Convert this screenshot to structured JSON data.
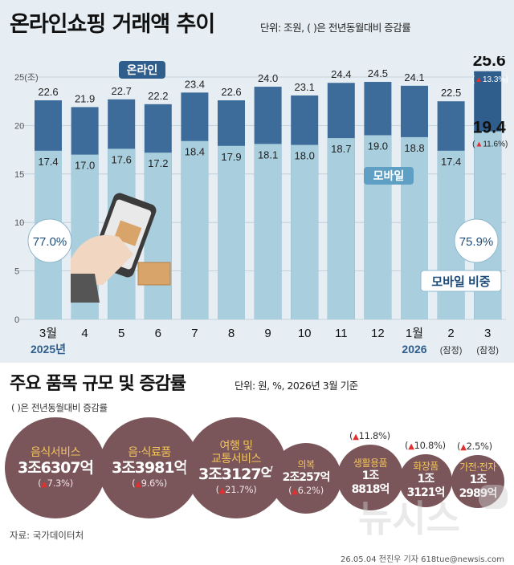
{
  "header": {
    "title": "온라인쇼핑 거래액 추이",
    "unit_note": "단위: 조원, ( )은 전년동월대비 증감률"
  },
  "chart_data": {
    "type": "bar",
    "y_unit": "25(조)",
    "yticks": [
      0,
      5,
      10,
      15,
      20,
      25
    ],
    "ylim": [
      0,
      25
    ],
    "categories": [
      "3월",
      "4",
      "5",
      "6",
      "7",
      "8",
      "9",
      "10",
      "11",
      "12",
      "1월",
      "2",
      "3"
    ],
    "category_sublabels": [
      "2025년",
      "",
      "",
      "",
      "",
      "",
      "",
      "",
      "",
      "",
      "2026",
      "(잠정)",
      "(잠정)"
    ],
    "series": [
      {
        "name": "온라인",
        "values": [
          22.6,
          21.9,
          22.7,
          22.2,
          23.4,
          22.6,
          24.0,
          23.1,
          24.4,
          24.5,
          24.1,
          22.5,
          25.6
        ],
        "color": "#3e6c9a"
      },
      {
        "name": "모바일",
        "values": [
          17.4,
          17.0,
          17.6,
          17.2,
          18.4,
          17.9,
          18.1,
          18.0,
          18.7,
          19.0,
          18.8,
          17.4,
          19.4
        ],
        "color": "#a9cfdf"
      }
    ],
    "latest_change": {
      "online": "13.3%",
      "mobile": "11.6%"
    },
    "mobile_share": {
      "first": "77.0%",
      "last": "75.9%",
      "label": "모바일 비중"
    }
  },
  "section2": {
    "title": "주요 품목 규모 및 증감률",
    "unit_note": "단위: 원, %, 2026년 3월 기준",
    "note": "( )은 전년동월대비 증감률",
    "items": [
      {
        "name": "음식서비스",
        "value": "3조6307억",
        "change": "7.3%"
      },
      {
        "name": "음·식료품",
        "value": "3조3981억",
        "change": "9.6%"
      },
      {
        "name": "여행 및\n교통서비스",
        "value": "3조3127억",
        "change": "21.7%"
      },
      {
        "name": "의복",
        "value": "2조257억",
        "change": "6.2%"
      },
      {
        "name": "생활용품",
        "value": "1조\n8818억",
        "change": "11.8%"
      },
      {
        "name": "화장품",
        "value": "1조\n3121억",
        "change": "10.8%"
      },
      {
        "name": "가전·전자",
        "value": "1조\n2989억",
        "change": "2.5%"
      }
    ]
  },
  "footer": {
    "source": "자료: 국가데이터처",
    "credit": "26.05.04 전진우 기자 618tue@newsis.com",
    "watermark": "뉴시스"
  }
}
